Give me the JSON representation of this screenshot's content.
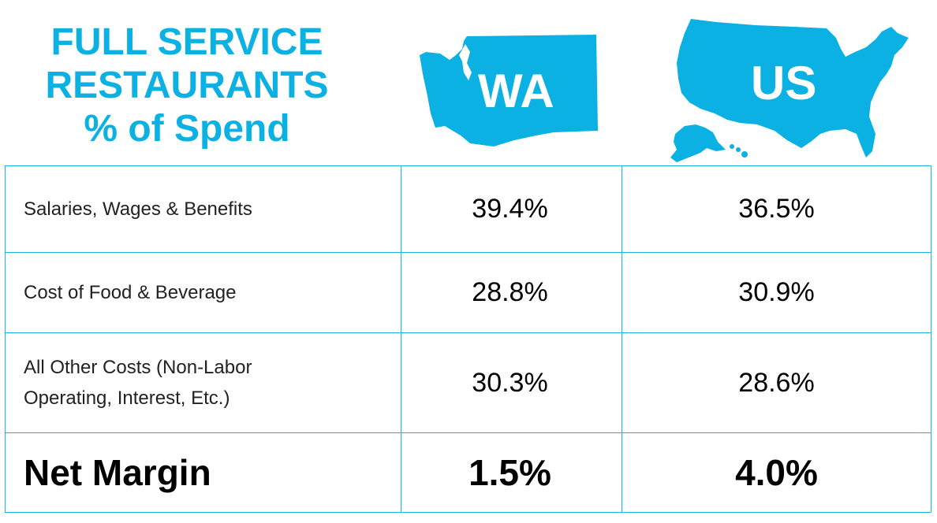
{
  "title_lines": [
    "FULL SERVICE",
    "RESTAURANTS",
    "% of Spend"
  ],
  "columns": {
    "wa": {
      "label": "WA",
      "icon": "washington-state-map-icon"
    },
    "us": {
      "label": "US",
      "icon": "united-states-map-icon"
    }
  },
  "colors": {
    "accent": "#0cb1e3",
    "border": "#19b6e6",
    "text": "#000000"
  },
  "rows": [
    {
      "label": "Salaries, Wages & Benefits",
      "wa": "39.4%",
      "us": "36.5%"
    },
    {
      "label_line1": "All Other Costs (Non-Labor",
      "label_line2": "Operating, Interest, Etc.)"
    },
    {
      "label": "Cost of Food & Beverage",
      "wa": "28.8%",
      "us": "30.9%"
    },
    {
      "label": "Net Margin",
      "wa": "1.5%",
      "us": "4.0%"
    }
  ],
  "other_costs": {
    "label_line1": "All Other Costs (Non-Labor",
    "label_line2": "Operating, Interest, Etc.)",
    "wa": "30.3%",
    "us": "28.6%"
  },
  "chart_data": {
    "type": "table",
    "title": "FULL SERVICE RESTAURANTS % of Spend",
    "columns": [
      "WA",
      "US"
    ],
    "rows": [
      {
        "category": "Salaries, Wages & Benefits",
        "values": [
          39.4,
          36.5
        ]
      },
      {
        "category": "Cost of Food & Beverage",
        "values": [
          28.8,
          30.9
        ]
      },
      {
        "category": "All Other Costs (Non-Labor Operating, Interest, Etc.)",
        "values": [
          30.3,
          28.6
        ]
      },
      {
        "category": "Net Margin",
        "values": [
          1.5,
          4.0
        ]
      }
    ],
    "unit": "%"
  }
}
